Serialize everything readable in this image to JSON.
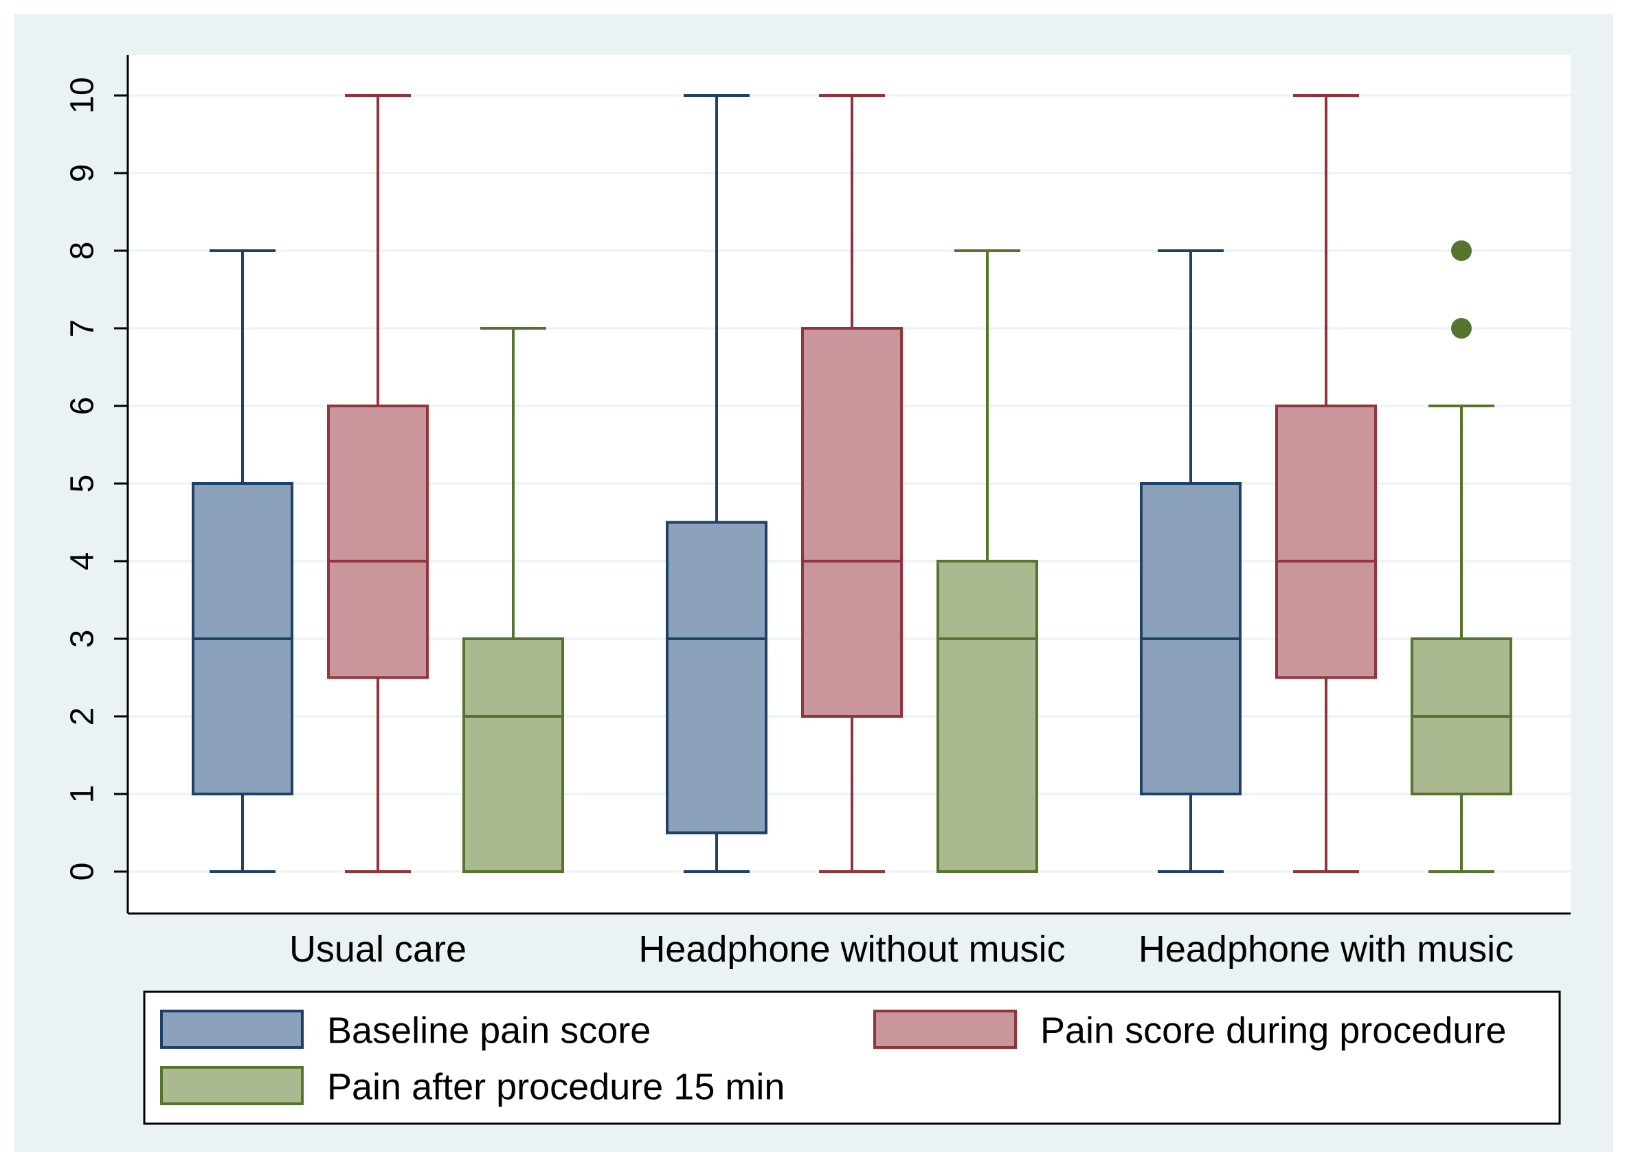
{
  "chart_data": {
    "type": "box",
    "title": "",
    "xlabel": "",
    "ylabel": "",
    "ylim": [
      -0.5,
      10.5
    ],
    "yticks": [
      0,
      1,
      2,
      3,
      4,
      5,
      6,
      7,
      8,
      9,
      10
    ],
    "ytick_labels": [
      "0",
      "1",
      "2",
      "3",
      "4",
      "5",
      "6",
      "7",
      "8",
      "9",
      "10"
    ],
    "grid": true,
    "legend_position": "bottom",
    "categories": [
      "Usual care",
      "Headphone without music",
      "Headphone with music"
    ],
    "series": [
      {
        "name": "Baseline pain score",
        "fill": "#8ca2ba",
        "stroke": "#1f4068",
        "boxes": [
          {
            "min": 0,
            "q1": 1,
            "median": 3,
            "q3": 5,
            "max": 8,
            "outliers": []
          },
          {
            "min": 0,
            "q1": 0.5,
            "median": 3,
            "q3": 4.5,
            "max": 10,
            "outliers": []
          },
          {
            "min": 0,
            "q1": 1,
            "median": 3,
            "q3": 5,
            "max": 8,
            "outliers": []
          }
        ]
      },
      {
        "name": "Pain score during procedure",
        "fill": "#c9969b",
        "stroke": "#90353b",
        "boxes": [
          {
            "min": 0,
            "q1": 2.5,
            "median": 4,
            "q3": 6,
            "max": 10,
            "outliers": []
          },
          {
            "min": 0,
            "q1": 2,
            "median": 4,
            "q3": 7,
            "max": 10,
            "outliers": []
          },
          {
            "min": 0,
            "q1": 2.5,
            "median": 4,
            "q3": 6,
            "max": 10,
            "outliers": []
          }
        ]
      },
      {
        "name": "Pain after procedure 15 min",
        "fill": "#abb991",
        "stroke": "#55752f",
        "boxes": [
          {
            "min": 0,
            "q1": 0,
            "median": 2,
            "q3": 3,
            "max": 7,
            "outliers": []
          },
          {
            "min": 0,
            "q1": 0,
            "median": 3,
            "q3": 4,
            "max": 8,
            "outliers": []
          },
          {
            "min": 0,
            "q1": 1,
            "median": 2,
            "q3": 3,
            "max": 6,
            "outliers": [
              7,
              8
            ]
          }
        ]
      }
    ],
    "colors": {
      "outer_background": "#eaf2f3",
      "plot_background": "#ffffff",
      "gridline": "#eaf2f3",
      "axis": "#000000"
    }
  }
}
